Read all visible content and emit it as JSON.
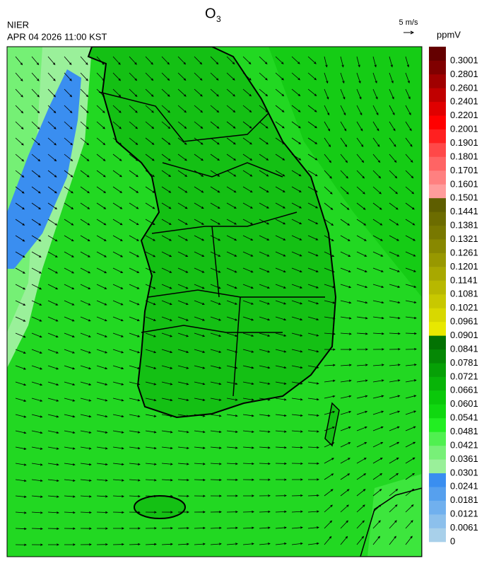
{
  "header": {
    "agency": "NIER",
    "datetime": "APR 04 2026 11:00 KST"
  },
  "title": {
    "text": "O",
    "subscript": "3"
  },
  "wind_reference": {
    "label": "5 m/s"
  },
  "colorbar": {
    "unit": "ppmV",
    "levels": [
      0,
      0.0061,
      0.0121,
      0.0181,
      0.0241,
      0.0301,
      0.0361,
      0.0421,
      0.0481,
      0.0541,
      0.0601,
      0.0661,
      0.0721,
      0.0781,
      0.0841,
      0.0901,
      0.0961,
      0.1021,
      0.1081,
      0.1141,
      0.1201,
      0.1261,
      0.1321,
      0.1381,
      0.1441,
      0.1501,
      0.1601,
      0.1701,
      0.1801,
      0.1901,
      0.2001,
      0.2201,
      0.2401,
      0.2601,
      0.2801,
      0.3001
    ],
    "colors": [
      "#a8d0ea",
      "#8cc0ec",
      "#70b0ee",
      "#56a0ee",
      "#3a8ef0",
      "#9af09a",
      "#78f078",
      "#50f050",
      "#22ee22",
      "#10d810",
      "#0ac80a",
      "#08b408",
      "#06a006",
      "#058805",
      "#037203",
      "#e8e800",
      "#d8d800",
      "#c8c800",
      "#b8b800",
      "#a8a800",
      "#989800",
      "#888800",
      "#787800",
      "#6c6c00",
      "#5e5e00",
      "#ff9c9c",
      "#ff8080",
      "#ff6464",
      "#ff4848",
      "#ff2020",
      "#ff0000",
      "#e00000",
      "#c00000",
      "#a00000",
      "#800000",
      "#640000"
    ]
  }
}
